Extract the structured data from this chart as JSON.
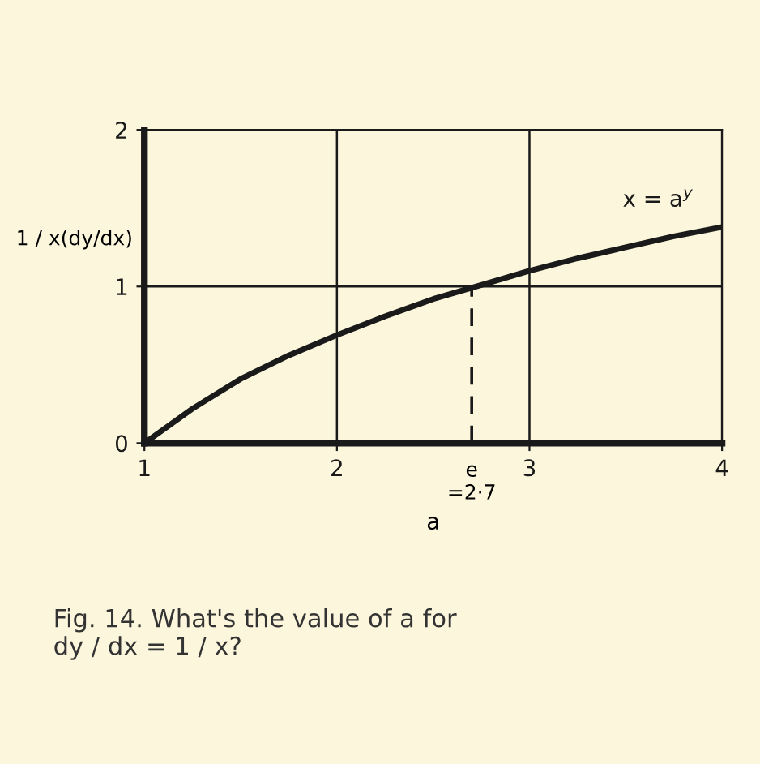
{
  "chart_data": {
    "type": "line",
    "xlabel": "a",
    "ylabel": "1 / x(dy/dx)",
    "x": [
      1,
      1.25,
      1.5,
      1.75,
      2,
      2.25,
      2.5,
      2.75,
      3,
      3.25,
      3.5,
      3.75,
      4
    ],
    "series": [
      {
        "name": "x = a$^{y}$",
        "color": "#1a1a1a",
        "values": [
          0,
          0.22,
          0.41,
          0.56,
          0.69,
          0.81,
          0.92,
          1.01,
          1.1,
          1.18,
          1.25,
          1.32,
          1.38
        ]
      },
      {
        "color": "#1a1a1a",
        "x": [
          2.7,
          2.7
        ],
        "values": [
          0,
          1
        ],
        "line_style": "dashed"
      }
    ],
    "xlim": [
      1,
      4
    ],
    "ylim": [
      0,
      2
    ],
    "xticks": [
      1,
      2,
      3,
      4
    ],
    "yticks": [
      0,
      1,
      2
    ],
    "grid": true,
    "legend": false,
    "annotations": [
      {
        "text": "e\n=2·7",
        "x": 2.7,
        "y": 0
      },
      "Fig. 14. What's the value of a for\ndy / dx = 1 / x?"
    ]
  }
}
